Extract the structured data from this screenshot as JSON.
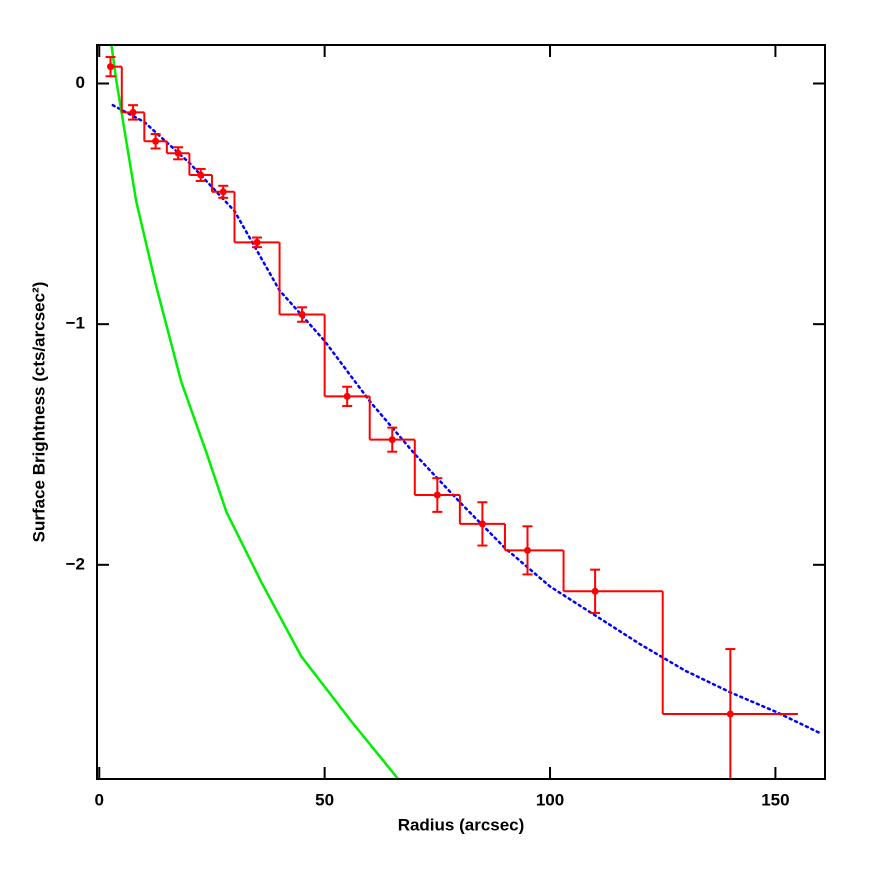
{
  "chart_data": {
    "type": "line",
    "xlabel": "Radius (arcsec)",
    "ylabel": "Surface Brightness (cts/arcsec²)",
    "xlim": [
      -0.5,
      161
    ],
    "ylim": [
      -2.89,
      0.16
    ],
    "xticks": [
      0,
      50,
      100,
      150
    ],
    "yticks": [
      0,
      {
        "value": -1,
        "label": "−1"
      },
      {
        "value": -2,
        "label": "−2"
      }
    ],
    "series": [
      {
        "kind": "step",
        "color": "#ff0000",
        "bins": [
          2.5,
          5,
          10,
          15,
          20,
          25,
          30,
          40,
          50,
          60,
          70,
          80,
          90,
          103,
          125,
          155
        ],
        "values": [
          0.07,
          -0.12,
          -0.24,
          -0.29,
          -0.38,
          -0.45,
          -0.66,
          -0.96,
          -1.3,
          -1.48,
          -1.71,
          -1.83,
          -1.94,
          -2.11,
          -2.62
        ]
      },
      {
        "kind": "errorbar",
        "color": "#ff0000",
        "x": [
          2.5,
          7.5,
          12.5,
          17.5,
          22.5,
          27.5,
          35,
          45,
          55,
          65,
          75,
          85,
          95,
          110,
          140
        ],
        "values": [
          0.07,
          -0.12,
          -0.24,
          -0.29,
          -0.38,
          -0.45,
          -0.66,
          -0.96,
          -1.3,
          -1.48,
          -1.71,
          -1.83,
          -1.94,
          -2.11,
          -2.62
        ],
        "errors": [
          0.04,
          0.03,
          0.03,
          0.025,
          0.025,
          0.025,
          0.02,
          0.03,
          0.04,
          0.05,
          0.07,
          0.09,
          0.1,
          0.09,
          0.27
        ]
      },
      {
        "kind": "line",
        "color": "#0000ff",
        "style": "dotted",
        "x": [
          3,
          10,
          20,
          30,
          40,
          50,
          60,
          70,
          80,
          90,
          100,
          110,
          120,
          130,
          140,
          150,
          160
        ],
        "values": [
          -0.09,
          -0.16,
          -0.33,
          -0.53,
          -0.86,
          -1.07,
          -1.32,
          -1.54,
          -1.74,
          -1.93,
          -2.09,
          -2.21,
          -2.33,
          -2.44,
          -2.53,
          -2.61,
          -2.7
        ]
      },
      {
        "kind": "line",
        "color": "#00ee00",
        "style": "solid",
        "x": [
          2.7,
          3.8,
          8.2,
          12.6,
          18.2,
          23.7,
          28.2,
          35.9,
          44.8,
          55.9,
          66.3
        ],
        "values": [
          0.16,
          0.01,
          -0.49,
          -0.84,
          -1.24,
          -1.53,
          -1.78,
          -2.07,
          -2.38,
          -2.65,
          -2.89
        ]
      }
    ]
  }
}
